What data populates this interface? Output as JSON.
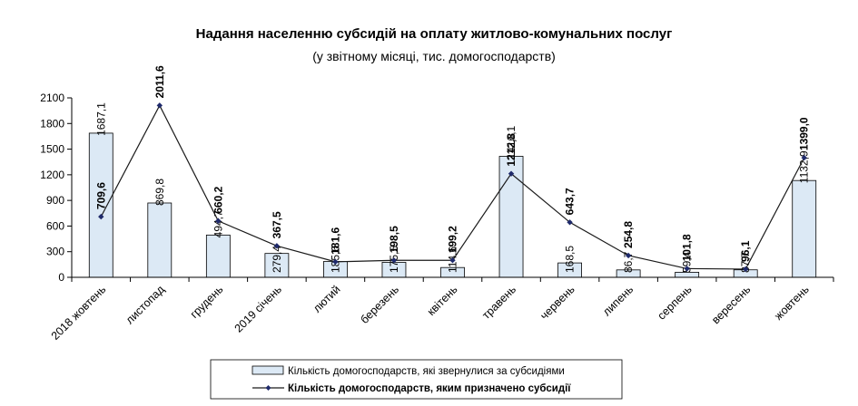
{
  "chart_data": {
    "type": "bar+line",
    "title": "Надання населенню субсидій на оплату житлово-комунальних послуг",
    "subtitle": "(у звітному місяці, тис. домогосподарств)",
    "categories": [
      "2018 жовтень",
      "листопад",
      "грудень",
      "2019 січень",
      "лютий",
      "березень",
      "квітень",
      "травень",
      "червень",
      "липень",
      "серпень",
      "вересень",
      "жовтень"
    ],
    "series": [
      {
        "name": "Кількість домогосподарств, які звернулися за субсидіями",
        "type": "bar",
        "values": [
          1687.1,
          869.8,
          494.7,
          279.4,
          185.6,
          175.5,
          114.6,
          1416.1,
          168.5,
          86.7,
          59.4,
          87.7,
          1132.9
        ],
        "labels": [
          "1687,1",
          "869,8",
          "494,7",
          "279,4",
          "185,6",
          "175,5",
          "114,6",
          "1416,1",
          "168,5",
          "86,7",
          "59,4",
          "87,7",
          "1132,9"
        ]
      },
      {
        "name": "Кількість домогосподарств, яким призначено субсидії",
        "type": "line",
        "values": [
          709.6,
          2011.6,
          660.2,
          367.5,
          181.6,
          198.5,
          199.2,
          1212.8,
          643.7,
          254.8,
          101.8,
          96.1,
          1399.0
        ],
        "labels": [
          "709,6",
          "2011,6",
          "660,2",
          "367,5",
          "181,6",
          "198,5",
          "199,2",
          "1212,8",
          "643,7",
          "254,8",
          "101,8",
          "96,1",
          "1399,0"
        ]
      }
    ],
    "ylim": [
      0,
      2100
    ],
    "yticks": [
      0,
      300,
      600,
      900,
      1200,
      1500,
      1800,
      2100
    ],
    "ytick_labels": [
      "0",
      "300",
      "600",
      "900",
      "1200",
      "1500",
      "1800",
      "2100"
    ],
    "xlabel": "",
    "ylabel": "",
    "grid": false,
    "legend_position": "bottom-center",
    "colors": {
      "bar_fill": "#dce9f5",
      "bar_stroke": "#000000",
      "line": "#1a1a1a",
      "marker": "#1f2a6b"
    }
  }
}
